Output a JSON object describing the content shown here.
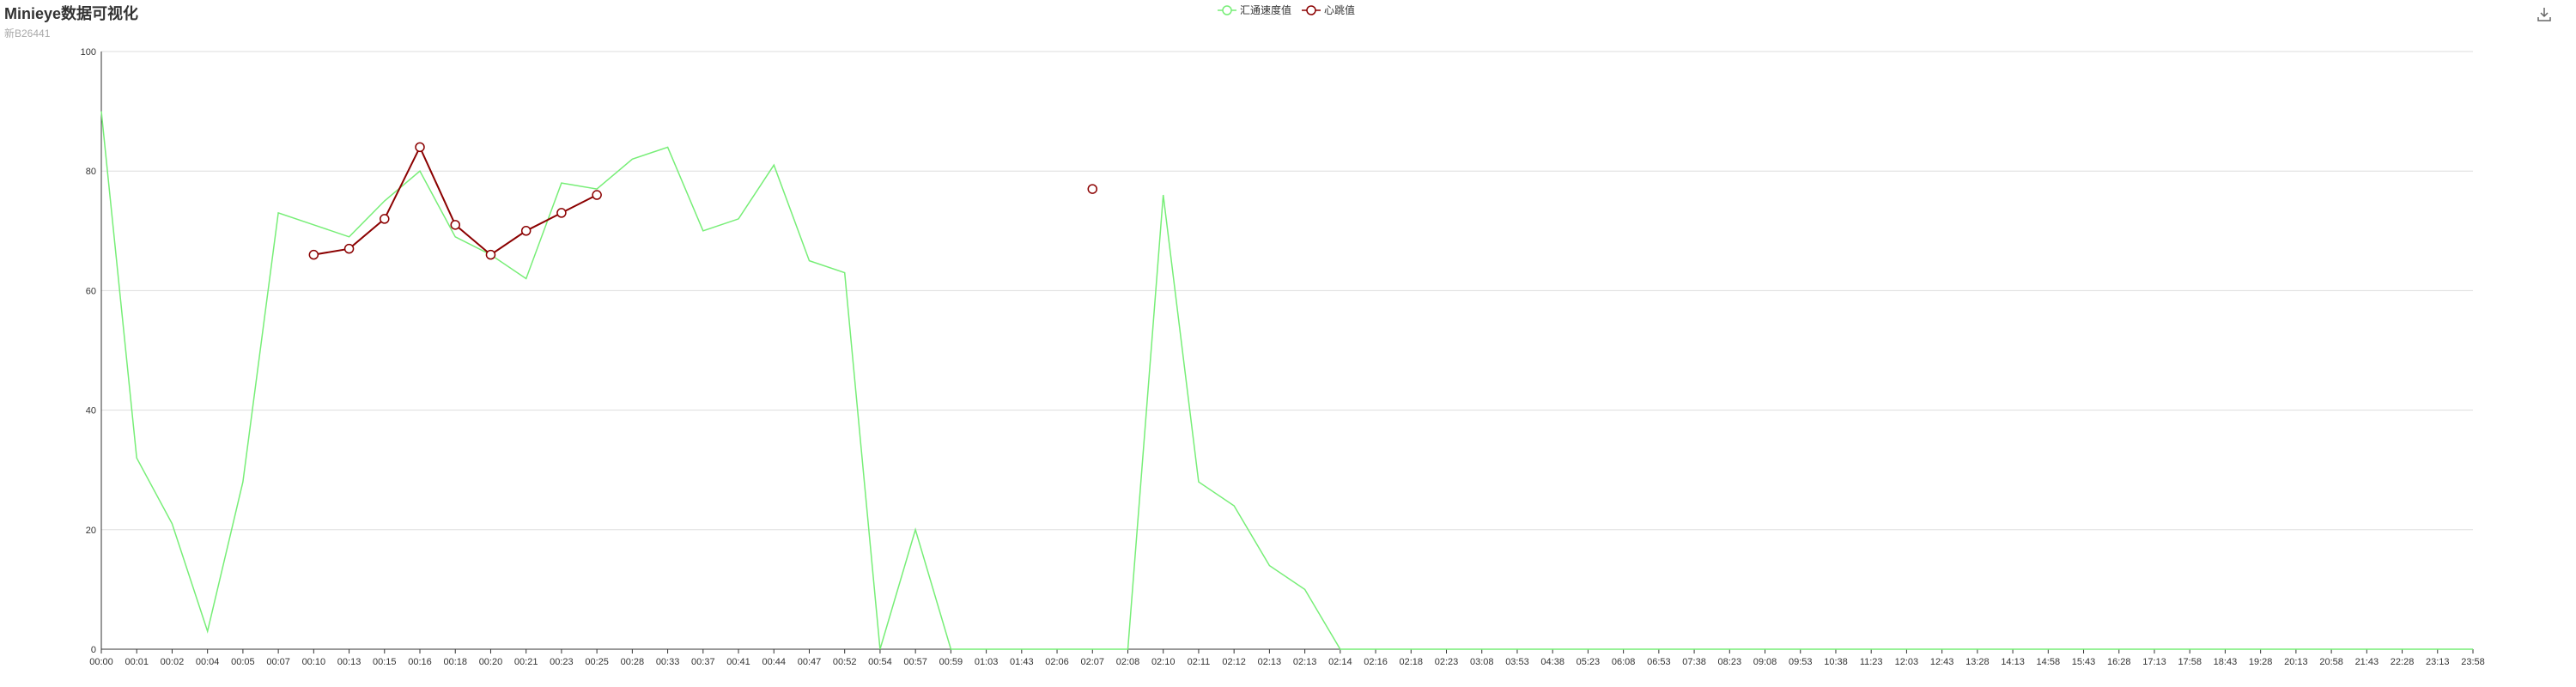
{
  "header": {
    "title": "Minieye数据可视化",
    "subtitle": "新B26441"
  },
  "colors": {
    "speed": "#77ee77",
    "heartbeat": "#8b0000",
    "grid": "#dddddd",
    "axis": "#333333"
  },
  "toolbar": {
    "download_icon": "download-icon"
  },
  "chart_data": {
    "type": "line",
    "title": "Minieye数据可视化",
    "subtitle": "新B26441",
    "legend_position": "top-center",
    "grid": true,
    "ylim": [
      0,
      100
    ],
    "yticks": [
      0,
      20,
      40,
      60,
      80,
      100
    ],
    "categories": [
      "00:00",
      "00:01",
      "00:02",
      "00:04",
      "00:05",
      "00:07",
      "00:10",
      "00:13",
      "00:15",
      "00:16",
      "00:18",
      "00:20",
      "00:21",
      "00:23",
      "00:25",
      "00:28",
      "00:33",
      "00:37",
      "00:41",
      "00:44",
      "00:47",
      "00:52",
      "00:54",
      "00:57",
      "00:59",
      "01:03",
      "01:43",
      "02:06",
      "02:07",
      "02:08",
      "02:10",
      "02:11",
      "02:12",
      "02:13",
      "02:13",
      "02:14",
      "02:16",
      "02:18",
      "02:23",
      "03:08",
      "03:53",
      "04:38",
      "05:23",
      "06:08",
      "06:53",
      "07:38",
      "08:23",
      "09:08",
      "09:53",
      "10:38",
      "11:23",
      "12:03",
      "12:43",
      "13:28",
      "14:13",
      "14:58",
      "15:43",
      "16:28",
      "17:13",
      "17:58",
      "18:43",
      "19:28",
      "20:13",
      "20:58",
      "21:43",
      "22:28",
      "23:13",
      "23:58"
    ],
    "series": [
      {
        "name": "汇通速度值",
        "values": [
          90,
          32,
          21,
          3,
          28,
          73,
          71,
          69,
          75,
          80,
          69,
          66,
          62,
          78,
          77,
          82,
          84,
          70,
          72,
          81,
          65,
          63,
          0,
          20,
          0,
          0,
          0,
          0,
          0,
          0,
          76,
          28,
          24,
          14,
          10,
          0,
          0,
          0,
          0,
          0,
          0,
          0,
          0,
          0,
          0,
          0,
          0,
          0,
          0,
          0,
          0,
          0,
          0,
          0,
          0,
          0,
          0,
          0,
          0,
          0,
          0,
          0,
          0,
          0,
          0,
          0,
          0,
          0
        ]
      },
      {
        "name": "心跳值",
        "values": [
          null,
          null,
          null,
          null,
          null,
          null,
          66,
          67,
          72,
          84,
          71,
          66,
          70,
          73,
          76,
          null,
          null,
          null,
          null,
          null,
          null,
          null,
          null,
          null,
          null,
          null,
          null,
          null,
          77,
          null,
          null,
          null,
          null,
          null,
          null,
          null,
          null,
          null,
          null,
          null,
          null,
          null,
          null,
          null,
          null,
          null,
          null,
          null,
          null,
          null,
          null,
          null,
          null,
          null,
          null,
          null,
          null,
          null,
          null,
          null,
          null,
          null,
          null,
          null,
          null,
          null,
          null,
          null
        ]
      }
    ]
  }
}
